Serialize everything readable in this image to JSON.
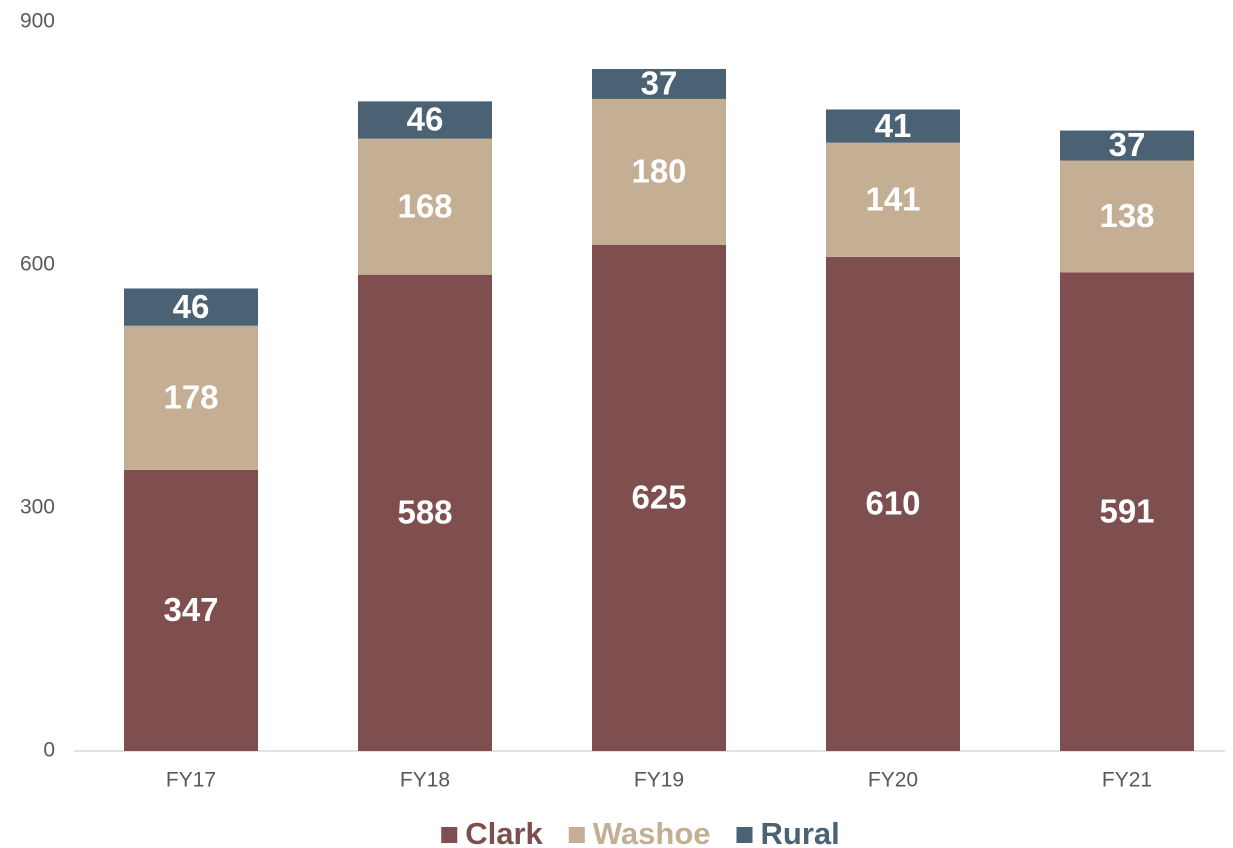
{
  "chart_data": {
    "type": "stacked_bar",
    "categories": [
      "FY17",
      "FY18",
      "FY19",
      "FY20",
      "FY21"
    ],
    "series": [
      {
        "name": "Clark",
        "color": "#7f4f4f",
        "values": [
          347,
          588,
          625,
          610,
          591
        ]
      },
      {
        "name": "Washoe",
        "color": "#c4ae94",
        "values": [
          178,
          168,
          180,
          141,
          138
        ]
      },
      {
        "name": "Rural",
        "color": "#4b6174",
        "values": [
          46,
          46,
          37,
          41,
          37
        ]
      }
    ],
    "ylim": [
      0,
      900
    ],
    "yticks": [
      0,
      300,
      600,
      900
    ],
    "grid": false,
    "legend": "bottom"
  }
}
